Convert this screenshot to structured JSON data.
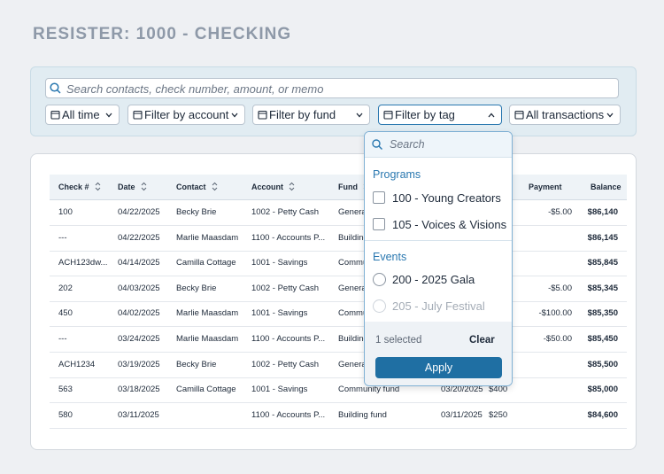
{
  "header": {
    "title": "RESISTER: 1000 - CHECKING"
  },
  "filters": {
    "search_placeholder": "Search contacts, check number, amount, or memo",
    "buttons": [
      "All time",
      "Filter by account",
      "Filter by fund",
      "Filter by tag",
      "All transactions"
    ]
  },
  "table": {
    "headers": [
      "Check #",
      "Date",
      "Contact",
      "Account",
      "Fund",
      null,
      null,
      "Payment",
      "Balance"
    ],
    "rows": [
      [
        "100",
        "04/22/2025",
        "Becky Brie",
        "1002 - Petty Cash",
        "General fund",
        null,
        null,
        "-$5.00",
        "$86,140"
      ],
      [
        "---",
        "04/22/2025",
        "Marlie Maasdam",
        "1100 - Accounts P...",
        "Building fund",
        null,
        null,
        null,
        "$86,145"
      ],
      [
        "ACH123dw...",
        "04/14/2025",
        "Camilla Cottage",
        "1001 - Savings",
        "Community fund",
        null,
        null,
        null,
        "$85,845"
      ],
      [
        "202",
        "04/03/2025",
        "Becky Brie",
        "1002 - Petty Cash",
        "General fund",
        null,
        null,
        "-$5.00",
        "$85,345"
      ],
      [
        "450",
        "04/02/2025",
        "Marlie Maasdam",
        "1001 - Savings",
        "Community fund",
        null,
        null,
        "-$100.00",
        "$85,350"
      ],
      [
        "---",
        "03/24/2025",
        "Marlie Maasdam",
        "1100 - Accounts P...",
        "Building fund",
        null,
        null,
        "-$50.00",
        "$85,450"
      ],
      [
        "ACH1234",
        "03/19/2025",
        "Becky Brie",
        "1002 - Petty Cash",
        "General fund",
        null,
        null,
        null,
        "$85,500"
      ],
      [
        "563",
        "03/18/2025",
        "Camilla Cottage",
        "1001 - Savings",
        "Community fund",
        "03/20/2025",
        "$400",
        null,
        "$85,000"
      ],
      [
        "580",
        "03/11/2025",
        null,
        "1100 - Accounts P...",
        "Building fund",
        "03/11/2025",
        "$250",
        null,
        "$84,600"
      ]
    ]
  },
  "dropdown": {
    "search_placeholder": "Search",
    "groups": [
      {
        "title": "Programs",
        "items": [
          "100 - Young Creators",
          "105 - Voices & Visions"
        ]
      },
      {
        "title": "Events",
        "items": [
          "200 - 2025 Gala",
          "205 - July Festival"
        ]
      }
    ],
    "selected_count": "1 selected",
    "clear": "Clear",
    "apply": "Apply"
  }
}
